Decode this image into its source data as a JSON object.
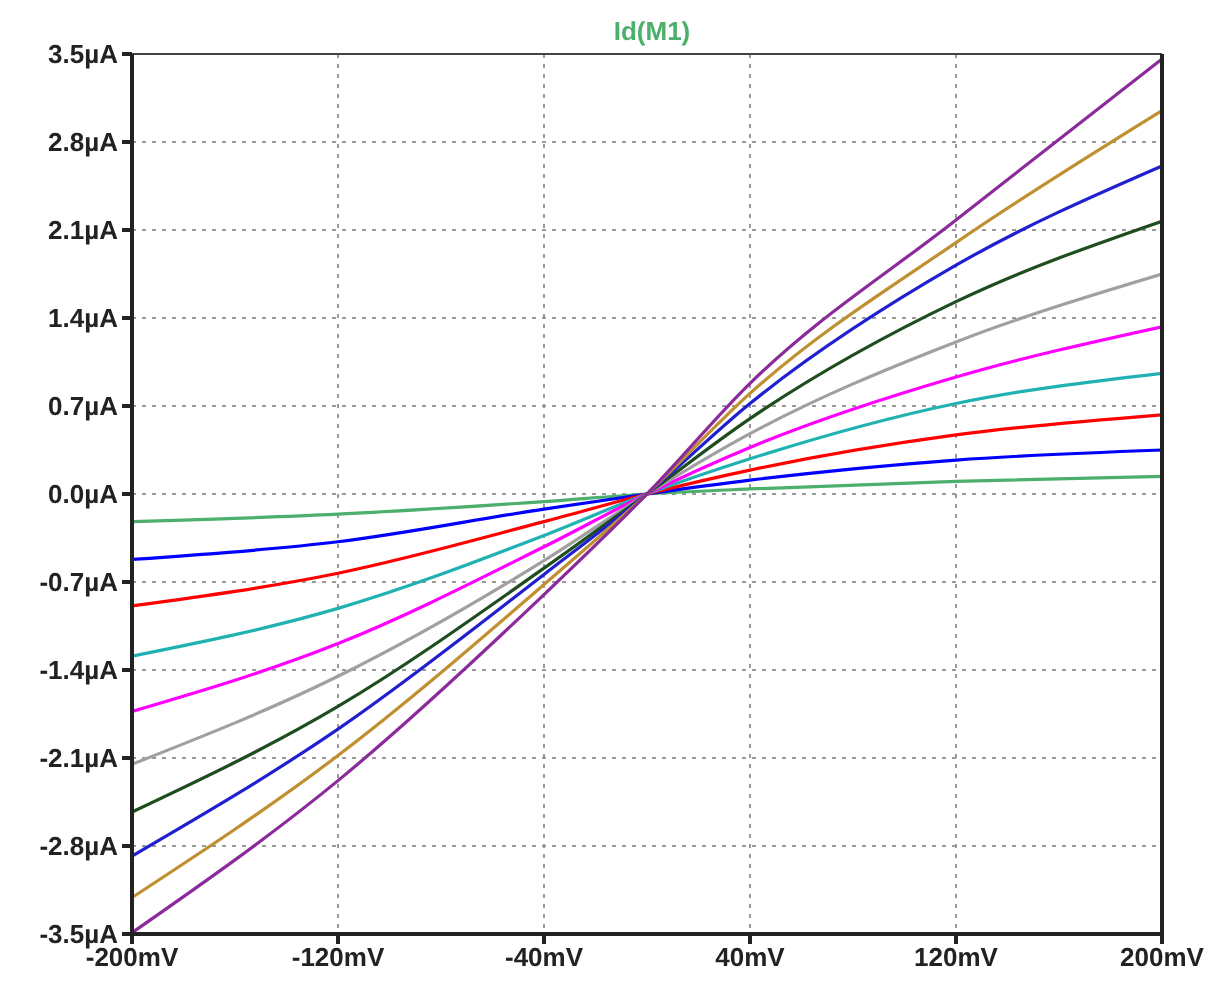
{
  "chart_data": {
    "type": "line",
    "title": "Id(M1)",
    "x": [
      -200,
      -120,
      -40,
      0,
      40,
      120,
      200
    ],
    "xlim": [
      -200,
      200
    ],
    "xticks": [
      {
        "value": -200,
        "label": "-200mV"
      },
      {
        "value": -120,
        "label": "-120mV"
      },
      {
        "value": -40,
        "label": "-40mV"
      },
      {
        "value": 40,
        "label": "40mV"
      },
      {
        "value": 120,
        "label": "120mV"
      },
      {
        "value": 200,
        "label": "200mV"
      }
    ],
    "ylim": [
      -3.5,
      3.5
    ],
    "yticks": [
      {
        "value": -3.5,
        "label": "-3.5µA"
      },
      {
        "value": -2.8,
        "label": "-2.8µA"
      },
      {
        "value": -2.1,
        "label": "-2.1µA"
      },
      {
        "value": -1.4,
        "label": "-1.4µA"
      },
      {
        "value": -0.7,
        "label": "-0.7µA"
      },
      {
        "value": 0,
        "label": "0.0µA"
      },
      {
        "value": 0.7,
        "label": "0.7µA"
      },
      {
        "value": 1.4,
        "label": "1.4µA"
      },
      {
        "value": 2.1,
        "label": "2.1µA"
      },
      {
        "value": 2.8,
        "label": "2.8µA"
      },
      {
        "value": 3.5,
        "label": "3.5µA"
      }
    ],
    "grid": true,
    "marker": "none",
    "line_style": "solid",
    "series": [
      {
        "color": "#4caf6c",
        "values": [
          -0.22,
          -0.16,
          -0.06,
          0,
          0.04,
          0.1,
          0.14
        ]
      },
      {
        "color": "#0000ff",
        "values": [
          -0.52,
          -0.38,
          -0.12,
          0,
          0.11,
          0.27,
          0.35
        ]
      },
      {
        "color": "#ff0000",
        "values": [
          -0.89,
          -0.63,
          -0.22,
          0,
          0.19,
          0.47,
          0.63
        ]
      },
      {
        "color": "#20b2b2",
        "values": [
          -1.29,
          -0.91,
          -0.33,
          0,
          0.28,
          0.72,
          0.96
        ]
      },
      {
        "color": "#ff00ff",
        "values": [
          -1.73,
          -1.19,
          -0.42,
          0,
          0.37,
          0.93,
          1.33
        ]
      },
      {
        "color": "#a0a0a0",
        "values": [
          -2.15,
          -1.45,
          -0.53,
          0,
          0.48,
          1.21,
          1.75
        ]
      },
      {
        "color": "#1e4d1e",
        "values": [
          -2.53,
          -1.69,
          -0.59,
          0,
          0.6,
          1.53,
          2.17
        ]
      },
      {
        "color": "#2020d0",
        "values": [
          -2.88,
          -1.87,
          -0.64,
          0,
          0.72,
          1.82,
          2.61
        ]
      },
      {
        "color": "#c09030",
        "values": [
          -3.21,
          -2.08,
          -0.72,
          0,
          0.8,
          2,
          3.05
        ]
      },
      {
        "color": "#8b2a9b",
        "values": [
          -3.49,
          -2.28,
          -0.8,
          0,
          0.88,
          2.18,
          3.46
        ]
      }
    ]
  }
}
